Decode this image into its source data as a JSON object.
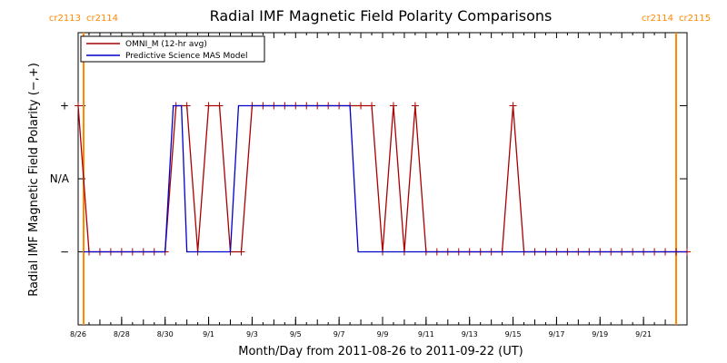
{
  "colors": {
    "omni": "#aa0000",
    "mas": "#0000cc",
    "cr": "#ff8800",
    "axis": "#000000"
  },
  "chart_data": {
    "type": "line",
    "title": "Radial IMF Magnetic Field Polarity Comparisons",
    "xlabel": "Month/Day from 2011-08-26 to 2011-09-22 (UT)",
    "ylabel": "Radial IMF Magnetic Field Polarity (−,+)",
    "x_range": [
      "2011-08-26",
      "2011-09-23"
    ],
    "y_ticks": [
      {
        "value": 1,
        "label": "+"
      },
      {
        "value": 0,
        "label": "N/A"
      },
      {
        "value": -1,
        "label": "−"
      }
    ],
    "ylim": [
      -2,
      2
    ],
    "x_ticks": [
      "8/26",
      "8/28",
      "8/30",
      "9/1",
      "9/3",
      "9/5",
      "9/7",
      "9/9",
      "9/11",
      "9/13",
      "9/15",
      "9/17",
      "9/19",
      "9/21"
    ],
    "x_tick_dates": [
      "2011-08-26",
      "2011-08-28",
      "2011-08-30",
      "2011-09-01",
      "2011-09-03",
      "2011-09-05",
      "2011-09-07",
      "2011-09-09",
      "2011-09-11",
      "2011-09-13",
      "2011-09-15",
      "2011-09-17",
      "2011-09-19",
      "2011-09-21"
    ],
    "carrington_lines": [
      {
        "date": "2011-08-26 06:00",
        "labels": [
          "cr2113",
          "cr2114"
        ]
      },
      {
        "date": "2011-09-22 12:00",
        "labels": [
          "cr2114",
          "cr2115"
        ]
      }
    ],
    "legend": {
      "location": "top-left",
      "entries": [
        "OMNI_M (12-hr avg)",
        "Predictive Science MAS Model"
      ]
    },
    "series": [
      {
        "name": "OMNI_M (12-hr avg)",
        "color": "#aa0000",
        "markers": "+",
        "points": [
          [
            "2011-08-26 00:00",
            1
          ],
          [
            "2011-08-26 12:00",
            -1
          ],
          [
            "2011-08-27 00:00",
            -1
          ],
          [
            "2011-08-27 12:00",
            -1
          ],
          [
            "2011-08-28 00:00",
            -1
          ],
          [
            "2011-08-28 12:00",
            -1
          ],
          [
            "2011-08-29 00:00",
            -1
          ],
          [
            "2011-08-29 12:00",
            -1
          ],
          [
            "2011-08-30 00:00",
            -1
          ],
          [
            "2011-08-30 12:00",
            1
          ],
          [
            "2011-08-31 00:00",
            1
          ],
          [
            "2011-08-31 12:00",
            -1
          ],
          [
            "2011-09-01 00:00",
            1
          ],
          [
            "2011-09-01 12:00",
            1
          ],
          [
            "2011-09-02 00:00",
            -1
          ],
          [
            "2011-09-02 12:00",
            -1
          ],
          [
            "2011-09-03 00:00",
            1
          ],
          [
            "2011-09-03 12:00",
            1
          ],
          [
            "2011-09-04 00:00",
            1
          ],
          [
            "2011-09-04 12:00",
            1
          ],
          [
            "2011-09-05 00:00",
            1
          ],
          [
            "2011-09-05 12:00",
            1
          ],
          [
            "2011-09-06 00:00",
            1
          ],
          [
            "2011-09-06 12:00",
            1
          ],
          [
            "2011-09-07 00:00",
            1
          ],
          [
            "2011-09-07 12:00",
            1
          ],
          [
            "2011-09-08 00:00",
            1
          ],
          [
            "2011-09-08 12:00",
            1
          ],
          [
            "2011-09-09 00:00",
            -1
          ],
          [
            "2011-09-09 12:00",
            1
          ],
          [
            "2011-09-10 00:00",
            -1
          ],
          [
            "2011-09-10 12:00",
            1
          ],
          [
            "2011-09-11 00:00",
            -1
          ],
          [
            "2011-09-11 12:00",
            -1
          ],
          [
            "2011-09-12 00:00",
            -1
          ],
          [
            "2011-09-12 12:00",
            -1
          ],
          [
            "2011-09-13 00:00",
            -1
          ],
          [
            "2011-09-13 12:00",
            -1
          ],
          [
            "2011-09-14 00:00",
            -1
          ],
          [
            "2011-09-14 12:00",
            -1
          ],
          [
            "2011-09-15 00:00",
            1
          ],
          [
            "2011-09-15 12:00",
            -1
          ],
          [
            "2011-09-16 00:00",
            -1
          ],
          [
            "2011-09-16 12:00",
            -1
          ],
          [
            "2011-09-17 00:00",
            -1
          ],
          [
            "2011-09-17 12:00",
            -1
          ],
          [
            "2011-09-18 00:00",
            -1
          ],
          [
            "2011-09-18 12:00",
            -1
          ],
          [
            "2011-09-19 00:00",
            -1
          ],
          [
            "2011-09-19 12:00",
            -1
          ],
          [
            "2011-09-20 00:00",
            -1
          ],
          [
            "2011-09-20 12:00",
            -1
          ],
          [
            "2011-09-21 00:00",
            -1
          ],
          [
            "2011-09-21 12:00",
            -1
          ],
          [
            "2011-09-22 00:00",
            -1
          ],
          [
            "2011-09-22 12:00",
            -1
          ],
          [
            "2011-09-23 00:00",
            -1
          ]
        ]
      },
      {
        "name": "Predictive Science MAS Model",
        "color": "#0000cc",
        "points": [
          [
            "2011-08-26 06:00",
            -1
          ],
          [
            "2011-08-30 00:00",
            -1
          ],
          [
            "2011-08-30 09:00",
            1
          ],
          [
            "2011-08-30 18:00",
            1
          ],
          [
            "2011-08-31 00:00",
            -1
          ],
          [
            "2011-09-02 00:00",
            -1
          ],
          [
            "2011-09-02 09:00",
            1
          ],
          [
            "2011-09-07 12:00",
            1
          ],
          [
            "2011-09-07 21:00",
            -1
          ],
          [
            "2011-09-23 00:00",
            -1
          ]
        ]
      }
    ]
  }
}
